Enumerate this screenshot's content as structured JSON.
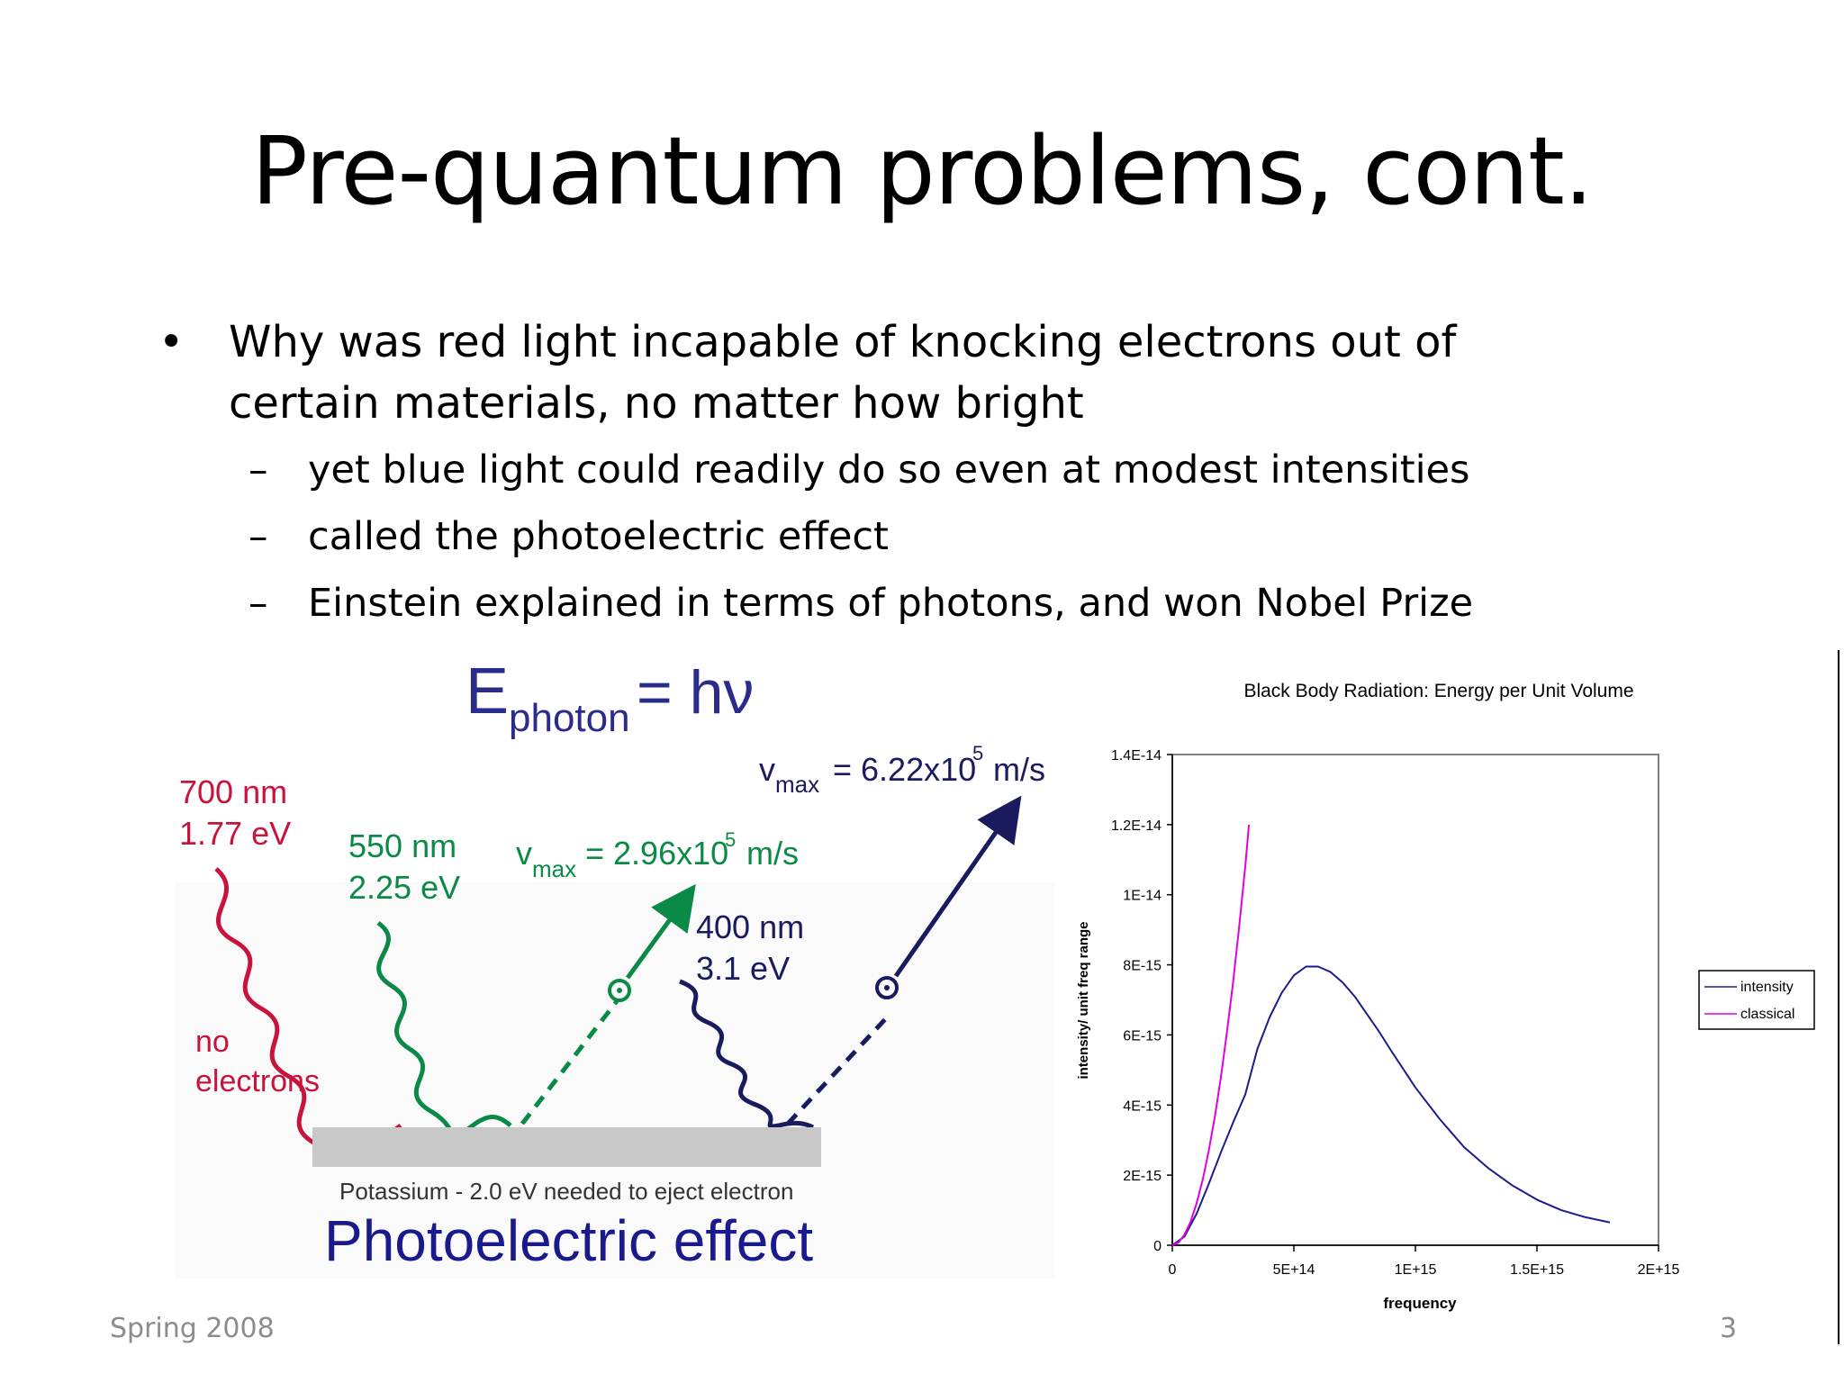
{
  "slide": {
    "title": "Pre-quantum problems, cont.",
    "bullet": "Why was red light incapable of knocking electrons out of certain materials, no matter how bright",
    "sub_bullets": [
      "yet blue light could readily do so even at modest intensities",
      "called the photoelectric effect",
      "Einstein explained in terms of photons, and won Nobel Prize"
    ],
    "bullet_symbol": "•",
    "dash_symbol": "–",
    "footer_left": "Spring 2008",
    "footer_right": "3"
  },
  "photoelectric_figure": {
    "equation_main": "E",
    "equation_sub": "photon",
    "equation_rhs": "= hν",
    "red": {
      "wavelength": "700 nm",
      "energy": "1.77 eV",
      "note_line1": "no",
      "note_line2": "electrons"
    },
    "green": {
      "wavelength": "550 nm",
      "energy": "2.25 eV",
      "vmax_symbol": "v",
      "vmax_sub": "max",
      "vmax_value": "= 2.96x10",
      "vmax_exp": "5",
      "vmax_unit": "m/s"
    },
    "blue": {
      "wavelength": "400 nm",
      "energy": "3.1 eV",
      "vmax_symbol": "v",
      "vmax_sub": "max",
      "vmax_value": "= 6.22x10",
      "vmax_exp": "5",
      "vmax_unit": "m/s"
    },
    "plate_label": "Potassium - 2.0 eV needed to eject electron",
    "caption": "Photoelectric effect",
    "colors": {
      "red": "#c8143c",
      "green": "#0a8a46",
      "blue": "#1a1a5e",
      "plate": "#c8c8c8",
      "equation": "#2b2b8c"
    }
  },
  "chart_data": {
    "type": "line",
    "title": "Black Body Radiation: Energy per Unit Volume",
    "xlabel": "frequency",
    "ylabel": "intensity/ unit freq range",
    "xlim": [
      0,
      2000000000000000.0
    ],
    "ylim": [
      0,
      1.4e-14
    ],
    "x_ticks": [
      0,
      500000000000000.0,
      1000000000000000.0,
      1500000000000000.0,
      2000000000000000.0
    ],
    "x_tick_labels": [
      "0",
      "5E+14",
      "1E+15",
      "1.5E+15",
      "2E+15"
    ],
    "y_ticks": [
      0,
      2e-15,
      4e-15,
      6e-15,
      8e-15,
      1e-14,
      1.2e-14,
      1.4e-14
    ],
    "y_tick_labels": [
      "0",
      "2E-15",
      "4E-15",
      "6E-15",
      "8E-15",
      "1E-14",
      "1.2E-14",
      "1.4E-14"
    ],
    "grid": false,
    "legend_position": "right",
    "series": [
      {
        "name": "intensity",
        "color": "#1c1c8c",
        "x": [
          0,
          50000000000000.0,
          100000000000000.0,
          150000000000000.0,
          200000000000000.0,
          250000000000000.0,
          300000000000000.0,
          350000000000000.0,
          400000000000000.0,
          450000000000000.0,
          500000000000000.0,
          550000000000000.0,
          600000000000000.0,
          650000000000000.0,
          700000000000000.0,
          750000000000000.0,
          800000000000000.0,
          850000000000000.0,
          900000000000000.0,
          1000000000000000.0,
          1100000000000000.0,
          1200000000000000.0,
          1300000000000000.0,
          1400000000000000.0,
          1500000000000000.0,
          1600000000000000.0,
          1700000000000000.0,
          1800000000000000.0
        ],
        "y": [
          0,
          2.5e-16,
          9e-16,
          1.75e-15,
          2.65e-15,
          3.5e-15,
          4.3e-15,
          5.6e-15,
          6.5e-15,
          7.2e-15,
          7.7e-15,
          7.95e-15,
          7.95e-15,
          7.8e-15,
          7.5e-15,
          7.1e-15,
          6.6e-15,
          6.1e-15,
          5.55e-15,
          4.5e-15,
          3.6e-15,
          2.8e-15,
          2.2e-15,
          1.7e-15,
          1.3e-15,
          1e-15,
          8e-16,
          6.5e-16
        ]
      },
      {
        "name": "classical",
        "color": "#e000e0",
        "x": [
          0,
          25000000000000.0,
          50000000000000.0,
          75000000000000.0,
          100000000000000.0,
          125000000000000.0,
          150000000000000.0,
          175000000000000.0,
          200000000000000.0,
          225000000000000.0,
          250000000000000.0,
          275000000000000.0,
          300000000000000.0,
          315000000000000.0
        ],
        "y": [
          0,
          7.5e-17,
          3e-16,
          6.7e-16,
          1.2e-15,
          1.87e-15,
          2.7e-15,
          3.67e-15,
          4.8e-15,
          6.1e-15,
          7.5e-15,
          9.1e-15,
          1.08e-14,
          1.2e-14
        ]
      }
    ]
  }
}
